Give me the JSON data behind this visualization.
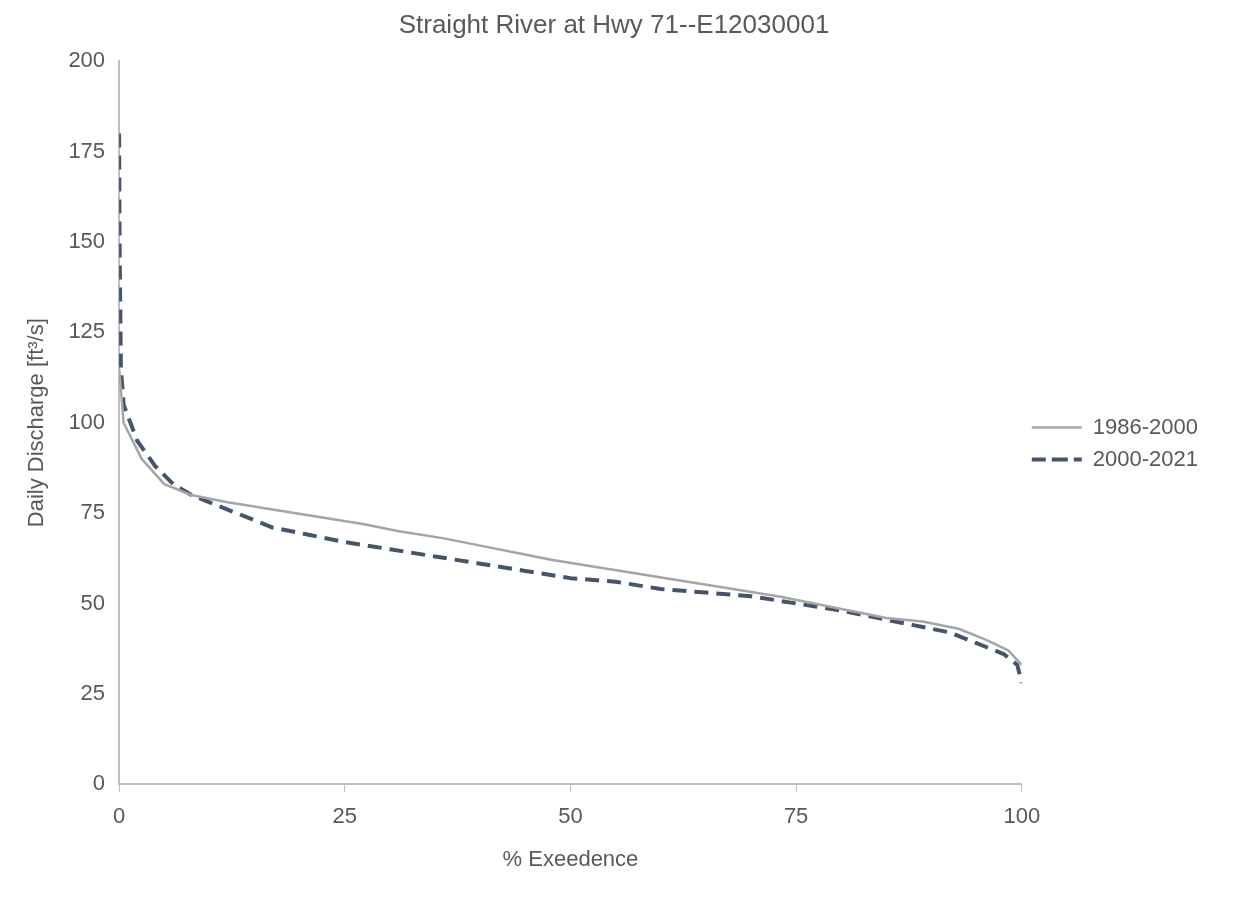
{
  "chart_data": {
    "type": "line",
    "title": "Straight River at Hwy 71--E12030001",
    "xlabel": "% Exeedence",
    "ylabel": "Daily Discharge [ft³/s]",
    "xlim": [
      0,
      100
    ],
    "xticks": [
      0,
      25,
      50,
      75,
      100
    ],
    "ylim": [
      0,
      200
    ],
    "yticks": [
      0,
      25,
      50,
      75,
      100,
      125,
      150,
      175,
      200
    ],
    "grid": false,
    "legend": "right",
    "marker": "none",
    "series": [
      {
        "name": "1986-2000",
        "color": "#a5a5a5",
        "line_style": "solid",
        "x": [
          0,
          0.5,
          2.5,
          5,
          8,
          12,
          17,
          22,
          27,
          31,
          36,
          40,
          44,
          48,
          53,
          58,
          63,
          68,
          73,
          77,
          81,
          85,
          89,
          93,
          96,
          98.5,
          100
        ],
        "values": [
          115,
          100,
          90,
          83,
          80,
          78,
          76,
          74,
          72,
          70,
          68,
          66,
          64,
          62,
          60,
          58,
          56,
          54,
          52,
          50,
          48,
          46,
          45,
          43,
          40,
          37,
          33
        ]
      },
      {
        "name": "2000-2021",
        "color": "#44546a",
        "line_style": "dashed",
        "x": [
          0,
          0.05,
          0.2,
          0.5,
          2,
          4,
          6,
          8,
          11,
          14,
          17,
          21,
          25,
          30,
          35,
          40,
          45,
          50,
          55,
          60,
          65,
          70,
          75,
          80,
          84,
          88,
          92,
          95,
          98,
          99.5,
          100
        ],
        "values": [
          180,
          150,
          115,
          105,
          95,
          88,
          83,
          80,
          77,
          74,
          71,
          69,
          67,
          65,
          63,
          61,
          59,
          57,
          56,
          54,
          53,
          52,
          50,
          48,
          46,
          44,
          42,
          39,
          36,
          33,
          28
        ]
      }
    ]
  }
}
